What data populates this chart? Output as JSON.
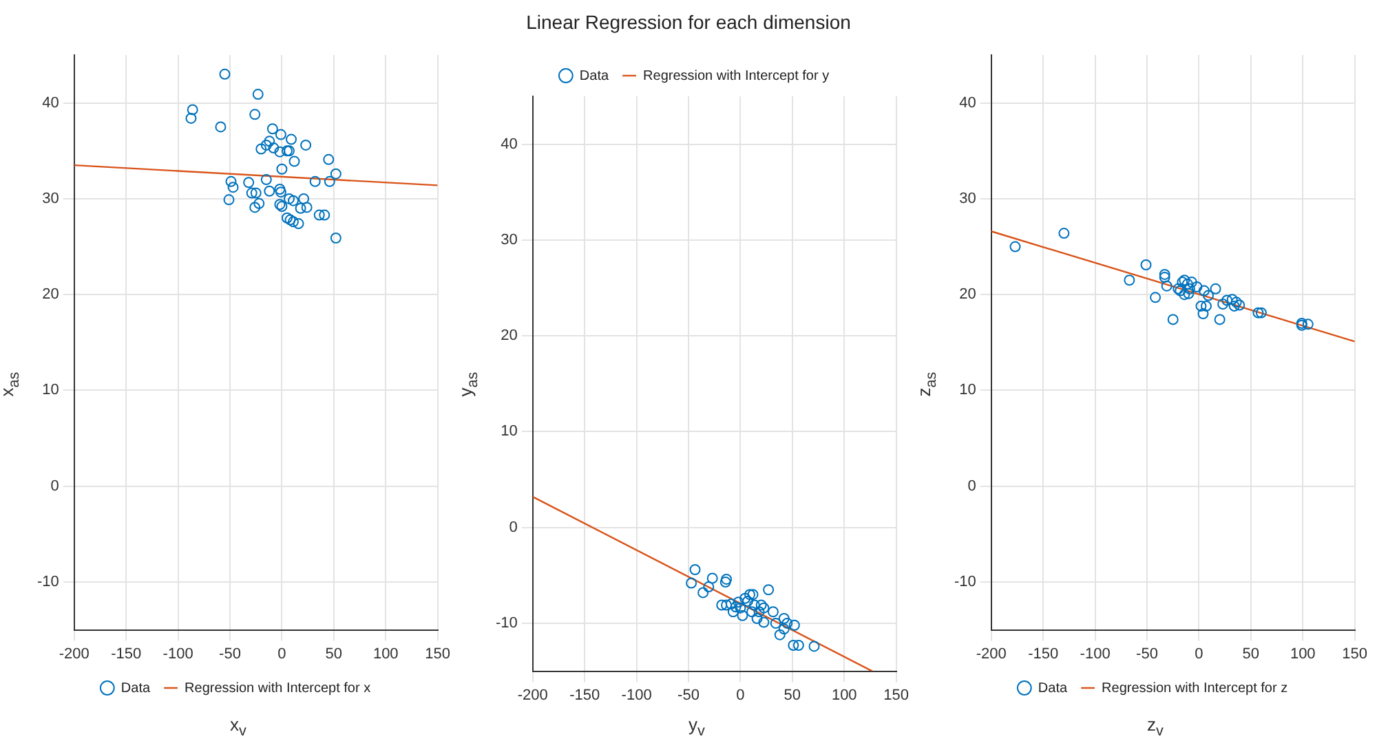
{
  "chart_data": [
    {
      "type": "scatter",
      "xlabel": "x$_{v}$",
      "ylabel": "x$_{as}$",
      "xlim": [
        -200,
        150
      ],
      "xticks": [
        -200,
        -150,
        -100,
        -50,
        0,
        50,
        100,
        150
      ],
      "ylim": [
        -15,
        45
      ],
      "yticks": [
        -10,
        0,
        10,
        20,
        30,
        40
      ],
      "grid": true,
      "legend": "bottom",
      "series": [
        {
          "name": "Data",
          "marker": "circle",
          "color": "#0072bd",
          "x": [
            -55,
            -23,
            -86,
            -87.5,
            -59,
            -26,
            -9,
            -1,
            9,
            23,
            -12,
            -15,
            -20,
            -8,
            -2,
            5,
            7,
            12,
            0,
            45,
            52,
            46,
            32,
            -15,
            -49,
            -47,
            -32,
            -51,
            -29,
            -25,
            -26,
            -22,
            -12,
            -2,
            -1,
            -2,
            0,
            7,
            11,
            21,
            18,
            24,
            5,
            8,
            11,
            16,
            36,
            41,
            52
          ],
          "values": [
            43,
            40.9,
            39.3,
            38.4,
            37.5,
            38.8,
            37.3,
            36.7,
            36.2,
            35.6,
            36,
            35.6,
            35.2,
            35.3,
            34.9,
            35,
            35,
            33.9,
            33.1,
            34.1,
            32.6,
            31.8,
            31.8,
            32,
            31.8,
            31.2,
            31.7,
            29.9,
            30.6,
            30.6,
            29.1,
            29.5,
            30.8,
            31,
            30.7,
            29.4,
            29.2,
            30,
            29.8,
            30,
            29,
            29.1,
            28,
            27.8,
            27.6,
            27.4,
            28.3,
            28.3,
            25.9
          ]
        },
        {
          "name": "Regression with Intercept for x",
          "type": "line",
          "marker": "none",
          "color": "#d95319",
          "x": [
            -200,
            150
          ],
          "values": [
            33.5,
            31.4
          ]
        }
      ]
    },
    {
      "type": "scatter",
      "title": "Linear Regression for each dimension",
      "xlabel": "y$_{v}$",
      "ylabel": "y$_{as}$",
      "xlim": [
        -200,
        150
      ],
      "xticks": [
        -200,
        -150,
        -100,
        -50,
        0,
        50,
        100,
        150
      ],
      "ylim": [
        -15,
        45
      ],
      "yticks": [
        -10,
        0,
        10,
        20,
        30,
        40
      ],
      "grid": true,
      "legend": "top",
      "series": [
        {
          "name": "Data",
          "marker": "circle",
          "color": "#0072bd",
          "x": [
            -43.7,
            -47.3,
            -36,
            -30.6,
            -27,
            -13.5,
            -14.4,
            27,
            -18,
            -13.5,
            -9,
            -4.5,
            -2,
            0,
            4.5,
            9,
            12,
            7,
            13.5,
            20,
            22.5,
            2,
            11,
            18,
            31.5,
            22.5,
            34,
            42,
            45,
            52,
            42,
            38,
            51,
            56,
            71,
            16,
            -7
          ],
          "values": [
            -4.4,
            -5.8,
            -6.8,
            -6.2,
            -5.3,
            -5.4,
            -5.7,
            -6.5,
            -8.1,
            -8.1,
            -8,
            -8.3,
            -7.8,
            -8.4,
            -7.4,
            -7,
            -7,
            -7.7,
            -8.1,
            -8.1,
            -8.4,
            -9.2,
            -8.8,
            -8.8,
            -8.8,
            -9.9,
            -10,
            -9.5,
            -10,
            -10.2,
            -10.6,
            -11.2,
            -12.3,
            -12.3,
            -12.4,
            -9.5,
            -8.8
          ]
        },
        {
          "name": "Regression with Intercept for y",
          "type": "line",
          "marker": "none",
          "color": "#d95319",
          "x": [
            -200,
            127
          ],
          "values": [
            3.2,
            -15
          ]
        }
      ]
    },
    {
      "type": "scatter",
      "xlabel": "z$_{v}$",
      "ylabel": "z$_{as}$",
      "xlim": [
        -200,
        150
      ],
      "xticks": [
        -200,
        -150,
        -100,
        -50,
        0,
        50,
        100,
        150
      ],
      "ylim": [
        -15,
        45
      ],
      "yticks": [
        -10,
        0,
        10,
        20,
        30,
        40
      ],
      "grid": true,
      "legend": "bottom",
      "series": [
        {
          "name": "Data",
          "marker": "circle",
          "color": "#0072bd",
          "x": [
            -177,
            -130,
            -51,
            -67,
            -33,
            -33,
            -31,
            -42,
            -25,
            -20,
            -16,
            -14,
            -11,
            -9,
            -7,
            -10,
            -2,
            5,
            9,
            16,
            2,
            7,
            4,
            20,
            23,
            27,
            32,
            36,
            34,
            39,
            57,
            60,
            99,
            99,
            105,
            -14,
            -18
          ],
          "values": [
            25,
            26.4,
            23.1,
            21.5,
            22.1,
            21.8,
            20.9,
            19.7,
            17.4,
            20.6,
            21.3,
            21.5,
            21.1,
            20.6,
            21.3,
            20.1,
            20.8,
            20.4,
            19.9,
            20.6,
            18.8,
            18.8,
            18,
            17.4,
            19,
            19.4,
            19.5,
            19.2,
            18.8,
            18.9,
            18.1,
            18.1,
            17,
            16.8,
            16.9,
            20,
            20.4
          ]
        },
        {
          "name": "Regression with Intercept for z",
          "type": "line",
          "marker": "none",
          "color": "#d95319",
          "x": [
            -200,
            150
          ],
          "values": [
            26.6,
            15.1
          ]
        }
      ]
    }
  ]
}
